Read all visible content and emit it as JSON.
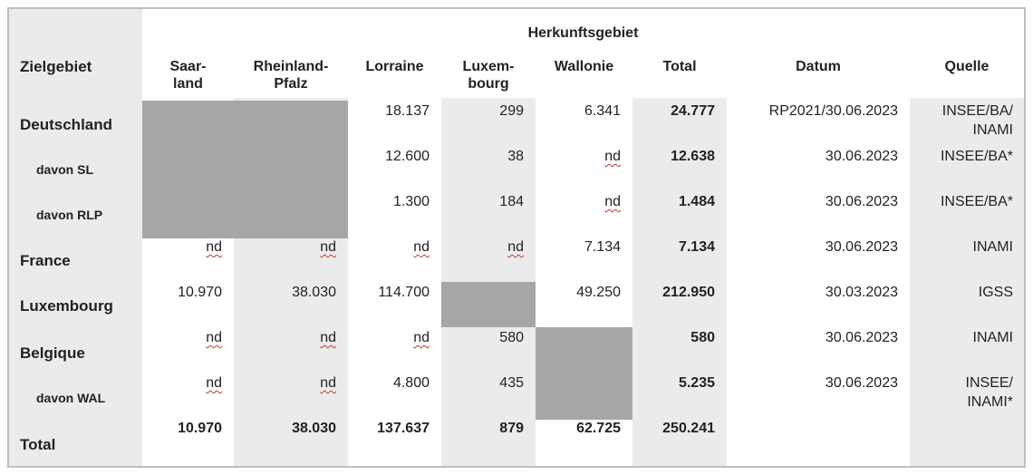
{
  "table": {
    "group_header": "Herkunftsgebiet",
    "columns": {
      "zielgebiet": "Zielgebiet",
      "saarland": [
        "Saar-",
        "land"
      ],
      "rlp": [
        "Rheinland-",
        "Pfalz"
      ],
      "lorraine": "Lorraine",
      "luxembourg": [
        "Luxem-",
        "bourg"
      ],
      "wallonie": "Wallonie",
      "total": "Total",
      "datum": "Datum",
      "quelle": "Quelle"
    },
    "rows": [
      {
        "label": "Deutschland",
        "saarland": "",
        "rlp": "",
        "lorraine": "18.137",
        "luxembourg": "299",
        "wallonie": "6.341",
        "total": "24.777",
        "datum": "RP2021/30.06.2023",
        "quelle": [
          "INSEE/BA/",
          "INAMI"
        ]
      },
      {
        "label": "davon SL",
        "saarland": "",
        "rlp": "",
        "lorraine": "12.600",
        "luxembourg": "38",
        "wallonie": "nd",
        "total": "12.638",
        "datum": "30.06.2023",
        "quelle": [
          "INSEE/BA*"
        ]
      },
      {
        "label": "davon RLP",
        "saarland": "",
        "rlp": "",
        "lorraine": "1.300",
        "luxembourg": "184",
        "wallonie": "nd",
        "total": "1.484",
        "datum": "30.06.2023",
        "quelle": [
          "INSEE/BA*"
        ]
      },
      {
        "label": "France",
        "saarland": "nd",
        "rlp": "nd",
        "lorraine": "nd",
        "luxembourg": "nd",
        "wallonie": "7.134",
        "total": "7.134",
        "datum": "30.06.2023",
        "quelle": [
          "INAMI"
        ]
      },
      {
        "label": "Luxembourg",
        "saarland": "10.970",
        "rlp": "38.030",
        "lorraine": "114.700",
        "luxembourg": "",
        "wallonie": "49.250",
        "total": "212.950",
        "datum": "30.03.2023",
        "quelle": [
          "IGSS"
        ]
      },
      {
        "label": "Belgique",
        "saarland": "nd",
        "rlp": "nd",
        "lorraine": "nd",
        "luxembourg": "580",
        "wallonie": "",
        "total": "580",
        "datum": "30.06.2023",
        "quelle": [
          "INAMI"
        ]
      },
      {
        "label": "davon WAL",
        "saarland": "nd",
        "rlp": "nd",
        "lorraine": "4.800",
        "luxembourg": "435",
        "wallonie": "",
        "total": "5.235",
        "datum": "30.06.2023",
        "quelle": [
          "INSEE/",
          "INAMI*"
        ]
      },
      {
        "label": "Total",
        "saarland": "10.970",
        "rlp": "38.030",
        "lorraine": "137.637",
        "luxembourg": "879",
        "wallonie": "62.725",
        "total": "250.241",
        "datum": "",
        "quelle": [
          ""
        ]
      }
    ]
  }
}
